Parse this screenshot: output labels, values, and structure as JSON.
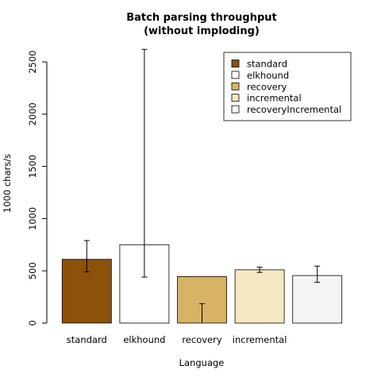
{
  "chart_data": {
    "type": "bar",
    "title": [
      "Batch parsing throughput",
      "(without imploding)"
    ],
    "xlabel": "Language",
    "ylabel": "1000 chars/s",
    "ylim": [
      0,
      2500
    ],
    "yticks": [
      "0",
      "500",
      "1000",
      "1500",
      "2000",
      "2500"
    ],
    "categories": [
      "standard",
      "elkhound",
      "recovery",
      "incremental",
      ""
    ],
    "series": [
      {
        "name": "standard",
        "value": 610,
        "err_low": 490,
        "err_high": 790,
        "color": "#8c510a"
      },
      {
        "name": "elkhound",
        "value": 750,
        "err_low": 440,
        "err_high": 2620,
        "color": "#ffffff"
      },
      {
        "name": "recovery",
        "value": 445,
        "err_low": 0,
        "err_high": 185,
        "color": "#d8b365"
      },
      {
        "name": "incremental",
        "value": 510,
        "err_low": 485,
        "err_high": 535,
        "color": "#f6e8c3"
      },
      {
        "name": "recoveryIncremental",
        "value": 455,
        "err_low": 390,
        "err_high": 545,
        "color": "#f5f5f5"
      }
    ],
    "legend": {
      "position": "top-right",
      "entries": [
        "standard",
        "elkhound",
        "recovery",
        "incremental",
        "recoveryIncremental"
      ]
    },
    "grid": false
  }
}
